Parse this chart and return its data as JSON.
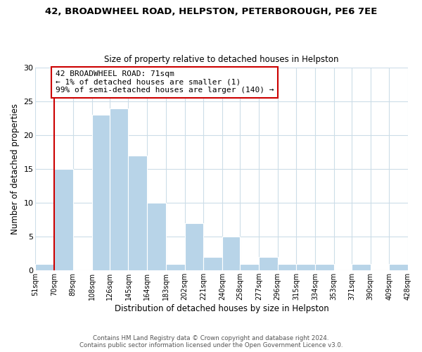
{
  "title_line1": "42, BROADWHEEL ROAD, HELPSTON, PETERBOROUGH, PE6 7EE",
  "title_line2": "Size of property relative to detached houses in Helpston",
  "xlabel": "Distribution of detached houses by size in Helpston",
  "ylabel": "Number of detached properties",
  "bin_edges": [
    51,
    70,
    89,
    108,
    126,
    145,
    164,
    183,
    202,
    221,
    240,
    258,
    277,
    296,
    315,
    334,
    353,
    371,
    390,
    409,
    428
  ],
  "bin_labels": [
    "51sqm",
    "70sqm",
    "89sqm",
    "108sqm",
    "126sqm",
    "145sqm",
    "164sqm",
    "183sqm",
    "202sqm",
    "221sqm",
    "240sqm",
    "258sqm",
    "277sqm",
    "296sqm",
    "315sqm",
    "334sqm",
    "353sqm",
    "371sqm",
    "390sqm",
    "409sqm",
    "428sqm"
  ],
  "bar_heights": [
    1,
    15,
    0,
    23,
    24,
    17,
    10,
    1,
    7,
    2,
    5,
    1,
    2,
    1,
    1,
    1,
    0,
    1,
    0,
    1
  ],
  "bar_color": "#b8d4e8",
  "bar_edge_color": "#ffffff",
  "property_line_x": 70,
  "property_line_color": "#cc0000",
  "annotation_text": "42 BROADWHEEL ROAD: 71sqm\n← 1% of detached houses are smaller (1)\n99% of semi-detached houses are larger (140) →",
  "annotation_box_color": "#cc0000",
  "ylim": [
    0,
    30
  ],
  "yticks": [
    0,
    5,
    10,
    15,
    20,
    25,
    30
  ],
  "footer_line1": "Contains HM Land Registry data © Crown copyright and database right 2024.",
  "footer_line2": "Contains public sector information licensed under the Open Government Licence v3.0.",
  "background_color": "#ffffff",
  "grid_color": "#ccdde8"
}
